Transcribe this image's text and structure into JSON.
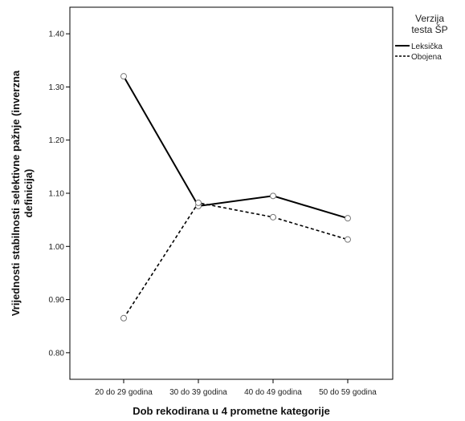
{
  "chart_data": {
    "type": "line",
    "xlabel": "Dob rekodirana u 4 prometne kategorije",
    "ylabel_line1": "Vrijednosti stabilnosti selektivne pažnje (inverzna",
    "ylabel_line2": "definicija)",
    "categories": [
      "20 do 29 godina",
      "30 do 39 godina",
      "40 do 49 godina",
      "50 do 59 godina"
    ],
    "ylim": [
      0.75,
      1.45
    ],
    "yticks": [
      "0.80",
      "0.90",
      "1.00",
      "1.10",
      "1.20",
      "1.30",
      "1.40"
    ],
    "grid": false,
    "legend": {
      "title_line1": "Verzija",
      "title_line2": "testa ŠP",
      "placement": "top-right, outside plot"
    },
    "series": [
      {
        "name": "Leksička",
        "style": "solid",
        "color": "#000000",
        "values": [
          1.32,
          1.076,
          1.095,
          1.053
        ]
      },
      {
        "name": "Obojena",
        "style": "dashed",
        "color": "#000000",
        "values": [
          0.865,
          1.082,
          1.055,
          1.013
        ]
      }
    ]
  }
}
